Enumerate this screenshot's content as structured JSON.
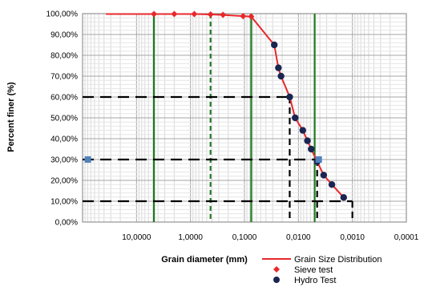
{
  "chart_data": {
    "type": "scatter",
    "title": "",
    "xlabel": "Grain diameter (mm)",
    "ylabel": "Percent finer (%)",
    "x_scale": "log-reversed",
    "xlim": [
      100,
      0.0001
    ],
    "ylim": [
      0,
      100
    ],
    "x_tick_labels": [
      {
        "value": 10,
        "label": "10,0000"
      },
      {
        "value": 1,
        "label": "1,0000"
      },
      {
        "value": 0.1,
        "label": "0,1000"
      },
      {
        "value": 0.01,
        "label": "0,0100"
      },
      {
        "value": 0.001,
        "label": "0,0010"
      },
      {
        "value": 0.0001,
        "label": "0,0001"
      }
    ],
    "y_tick_labels": [
      "0,00%",
      "10,00%",
      "20,00%",
      "30,00%",
      "40,00%",
      "50,00%",
      "60,00%",
      "70,00%",
      "80,00%",
      "90,00%",
      "100,00%"
    ],
    "grid": true,
    "legend_position": "bottom-right",
    "series": [
      {
        "name": "Grain Size Distribution",
        "kind": "line",
        "color": "#e8282b",
        "points": [
          [
            37,
            99.8
          ],
          [
            4.75,
            99.8
          ],
          [
            2,
            99.8
          ],
          [
            0.85,
            99.8
          ],
          [
            0.425,
            99.6
          ],
          [
            0.25,
            99.4
          ],
          [
            0.106,
            98.8
          ],
          [
            0.075,
            98.6
          ],
          [
            0.028,
            85
          ],
          [
            0.0235,
            74
          ],
          [
            0.021,
            70
          ],
          [
            0.0145,
            60
          ],
          [
            0.0115,
            50
          ],
          [
            0.0083,
            44
          ],
          [
            0.0068,
            39
          ],
          [
            0.0058,
            35
          ],
          [
            0.0045,
            29
          ],
          [
            0.0034,
            22.5
          ],
          [
            0.0024,
            18
          ],
          [
            0.00145,
            11.8
          ]
        ]
      },
      {
        "name": "Sieve test",
        "kind": "marker",
        "marker": "diamond",
        "color": "#e8282b",
        "points": [
          [
            4.75,
            99.8
          ],
          [
            2,
            99.8
          ],
          [
            0.85,
            99.8
          ],
          [
            0.425,
            99.6
          ],
          [
            0.25,
            99.4
          ],
          [
            0.106,
            98.8
          ],
          [
            0.075,
            98.6
          ]
        ]
      },
      {
        "name": "Hydro Test",
        "kind": "marker",
        "marker": "circle",
        "color": "#1b2551",
        "points": [
          [
            0.028,
            85
          ],
          [
            0.0235,
            74
          ],
          [
            0.021,
            70
          ],
          [
            0.0145,
            60
          ],
          [
            0.0115,
            50
          ],
          [
            0.0083,
            44
          ],
          [
            0.0068,
            39
          ],
          [
            0.0058,
            35
          ],
          [
            0.0045,
            29
          ],
          [
            0.0034,
            22.5
          ],
          [
            0.0024,
            18
          ],
          [
            0.00145,
            11.8
          ]
        ]
      }
    ],
    "reference_lines": [
      {
        "kind": "vertical",
        "x": 4.75,
        "style": "solid",
        "color": "#1f7a1f"
      },
      {
        "kind": "vertical",
        "x": 0.425,
        "style": "dashed",
        "color": "#1f7a1f"
      },
      {
        "kind": "vertical",
        "x": 0.075,
        "style": "solid",
        "color": "#1f7a1f"
      },
      {
        "kind": "vertical",
        "x": 0.005,
        "style": "solid",
        "color": "#1f7a1f"
      },
      {
        "kind": "horizontal",
        "y": 60,
        "from_x": 100,
        "to_x": 0.0145,
        "drop_to_axis": true,
        "style": "dashed",
        "color": "#000000"
      },
      {
        "kind": "horizontal",
        "y": 30,
        "from_x": 100,
        "to_x": 0.0045,
        "drop_to_axis": true,
        "style": "dashed",
        "color": "#000000"
      },
      {
        "kind": "horizontal",
        "y": 10,
        "from_x": 100,
        "to_x": 0.001,
        "drop_to_axis": true,
        "style": "dashed",
        "color": "#000000"
      }
    ],
    "square_markers": [
      {
        "x": 80,
        "y": 30,
        "color": "#4f81bd"
      },
      {
        "x": 0.0042,
        "y": 30,
        "color": "#4f81bd"
      }
    ]
  }
}
